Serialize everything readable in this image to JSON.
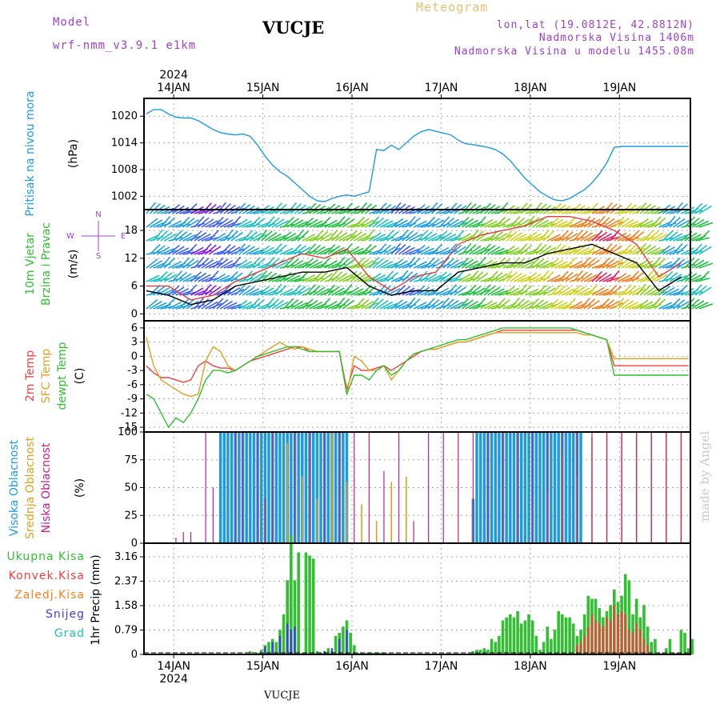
{
  "header": {
    "model_label": "Model",
    "model_name": "wrf-nmm_v3.9.1  e1km",
    "station": "VUCJE",
    "meteogram": "Meteogram",
    "lonlat": "lon,lat (19.0812E, 42.8812N)",
    "altitude": "Nadmorska Visina 1406m",
    "model_altitude": "Nadmorska Visina u modelu 1455.08m",
    "bottom_station": "VUCJE",
    "watermark": "made by Angel"
  },
  "colors": {
    "pressure": "#1e9be0",
    "t2m": "#f04040",
    "sfc": "#e0a020",
    "dew": "#30c030",
    "high_cloud": "#1e9be0",
    "mid_cloud": "#e0a020",
    "low_cloud": "#c0208a",
    "total_precip": "#30c030",
    "conv_precip": "#f04040",
    "frozen": "#ff8020",
    "snow": "#4040e0",
    "hail": "#20c0c0"
  },
  "time_axis": {
    "year": "2024",
    "days": [
      "14JAN",
      "15JAN",
      "16JAN",
      "17JAN",
      "18JAN",
      "19JAN"
    ]
  },
  "chart_data": [
    {
      "type": "line",
      "id": "pressure",
      "ylabel_1": "Pritisak na nivou mora",
      "ylabel_2": "(hPa)",
      "yticks": [
        "1020",
        "1014",
        "1008",
        "1002"
      ],
      "ylim": [
        999,
        1024
      ],
      "x_hours_from_14JAN00": [
        -4,
        -2,
        0,
        2,
        4,
        6,
        8,
        10,
        12,
        14,
        16,
        18,
        20,
        22,
        24,
        26,
        28,
        30,
        32,
        34,
        36,
        38,
        40,
        42,
        44,
        46,
        48,
        50,
        52,
        54,
        56,
        58,
        60,
        62,
        64,
        66,
        68,
        70,
        72,
        74,
        76,
        78,
        80,
        82,
        84,
        86,
        88,
        90,
        92,
        94,
        96,
        98,
        100,
        102,
        104,
        106,
        108,
        110,
        112,
        114,
        116,
        118,
        120,
        122,
        124,
        126,
        128,
        130,
        132,
        134,
        136,
        138,
        140,
        142
      ],
      "series": [
        {
          "values": [
            1020.5,
            1021.5,
            1021.5,
            1020.5,
            1019.8,
            1019.6,
            1019.6,
            1019,
            1018,
            1017,
            1016.3,
            1016,
            1015.8,
            1016,
            1015.5,
            1013.5,
            1011,
            1009,
            1007.5,
            1006.5,
            1005,
            1003.5,
            1002,
            1001,
            1000.8,
            1001.5,
            1002,
            1002.3,
            1002,
            1002.5,
            1003,
            1012.5,
            1012.3,
            1013.5,
            1012.5,
            1014,
            1015.5,
            1016.5,
            1017,
            1016.6,
            1016.2,
            1015.8,
            1014.6,
            1013.8,
            1013.6,
            1013.3,
            1013,
            1012.5,
            1011.5,
            1010,
            1008,
            1006,
            1004.5,
            1003,
            1002,
            1001.2,
            1001,
            1001.5,
            1002.5,
            1003.5,
            1005,
            1007,
            1009.5,
            1013,
            1013.2,
            1013.2,
            1013.2,
            1013.2,
            1013.2,
            1013.2,
            1013.2,
            1013.2,
            1013.2,
            1013.2
          ]
        }
      ]
    },
    {
      "type": "barbs",
      "id": "wind",
      "ylabel_1": "10m Vjetar",
      "ylabel_2": "Brzina i Pravac",
      "ylabel_3": "(m/s)",
      "yticks": [
        "18",
        "12",
        "6",
        "0"
      ],
      "ylim": [
        -1.5,
        22.5
      ],
      "compass": {
        "n": "N",
        "s": "S",
        "w": "W",
        "e": "E"
      },
      "x_hours_from_14JAN00": [
        -4,
        2,
        8,
        14,
        20,
        26,
        32,
        38,
        44,
        50,
        56,
        62,
        68,
        74,
        80,
        86,
        92,
        98,
        104,
        110,
        116,
        122,
        128,
        134,
        140
      ],
      "speed": [
        5,
        4,
        2,
        3,
        6,
        7,
        8,
        9,
        9,
        10,
        6,
        4,
        5,
        5,
        9,
        10,
        11,
        11,
        13,
        14,
        15,
        13,
        11,
        5,
        8
      ],
      "gust": [
        6,
        6,
        3,
        4,
        7,
        9,
        11,
        13,
        12,
        14,
        8,
        5,
        8,
        9,
        15,
        17,
        18,
        19,
        21,
        21,
        20,
        18,
        15,
        8,
        11
      ]
    },
    {
      "type": "line",
      "id": "temperature",
      "ylabel_1": "2m Temp",
      "ylabel_2": "SFC Temp",
      "ylabel_3": "dewpt Temp",
      "ylabel_4": "(C)",
      "yticks": [
        "6",
        "3",
        "0",
        "-3",
        "-6",
        "-9",
        "-12",
        "-15"
      ],
      "ylim": [
        -16,
        7.5
      ],
      "x_hours_from_14JAN00": [
        -4,
        -2,
        0,
        2,
        4,
        6,
        8,
        10,
        12,
        14,
        16,
        18,
        20,
        22,
        24,
        26,
        28,
        30,
        32,
        34,
        36,
        38,
        40,
        42,
        44,
        46,
        48,
        50,
        52,
        54,
        56,
        58,
        60,
        62,
        64,
        66,
        68,
        70,
        72,
        74,
        76,
        78,
        80,
        82,
        84,
        86,
        88,
        90,
        92,
        94,
        96,
        98,
        100,
        102,
        104,
        106,
        108,
        110,
        112,
        114,
        116,
        118,
        120,
        122,
        124,
        126,
        128,
        130,
        132,
        134,
        136,
        138,
        140,
        142
      ],
      "series": [
        {
          "name": "2m Temp",
          "values": [
            -2,
            -3.5,
            -4.5,
            -4.5,
            -5,
            -5.5,
            -5,
            -2,
            -1,
            -2,
            -2.5,
            -2.5,
            -3,
            -2,
            -1,
            -0.5,
            0,
            0.5,
            1,
            1.5,
            2,
            2,
            1,
            1,
            1,
            1,
            1,
            -7,
            -2,
            -3,
            -3,
            -2.5,
            -2,
            -3,
            -2,
            -1,
            0,
            1,
            1.5,
            1.5,
            2,
            2.5,
            3,
            3,
            3.5,
            4,
            4.5,
            5,
            5.5,
            5.5,
            5.5,
            5.5,
            5.5,
            5.5,
            5.5,
            5.5,
            5.5,
            5.5,
            5.5,
            5,
            4.5,
            4,
            3.5,
            -2,
            -2,
            -2,
            -2,
            -2,
            -2,
            -2,
            -2,
            -2,
            -2,
            -2
          ]
        },
        {
          "name": "SFC Temp",
          "values": [
            4,
            -2,
            -5,
            -6,
            -7,
            -8,
            -8.5,
            -8,
            -1,
            2,
            1,
            -2,
            -3,
            -2,
            -1,
            0,
            1,
            2,
            3,
            2,
            1.5,
            2,
            1.5,
            1,
            1,
            1,
            1,
            -8,
            0,
            -1,
            -3,
            -3,
            -2,
            -5,
            -3,
            -1,
            0.5,
            1,
            1.5,
            1.5,
            2,
            2.5,
            3,
            3,
            3.5,
            4,
            4.5,
            5,
            5,
            5,
            5,
            5,
            5,
            5,
            5,
            5,
            5,
            5,
            5,
            4.5,
            4.5,
            4,
            3.5,
            -0.5,
            -0.5,
            -0.5,
            -0.5,
            -0.5,
            -0.5,
            -0.5,
            -0.5,
            -0.5,
            -0.5,
            -0.5
          ]
        },
        {
          "name": "dewpt Temp",
          "values": [
            -8,
            -9,
            -12,
            -15,
            -13,
            -14,
            -12,
            -9,
            -5,
            -3,
            -3,
            -3.5,
            -3,
            -2,
            -1,
            0,
            0.5,
            1,
            1.5,
            2,
            2,
            1.5,
            1,
            1,
            1,
            1,
            1,
            -8,
            -4,
            -4,
            -5,
            -3,
            -2,
            -4,
            -3,
            -1,
            0.5,
            1,
            1.5,
            2,
            2.5,
            3,
            3.5,
            3.5,
            4,
            4.5,
            5,
            5.5,
            6,
            6,
            6,
            6,
            6,
            6,
            6,
            6,
            6,
            6,
            5.5,
            5,
            4.5,
            4,
            3.5,
            -4,
            -4,
            -4,
            -4,
            -4,
            -4,
            -4,
            -4,
            -4,
            -4,
            -4
          ]
        }
      ]
    },
    {
      "type": "bar",
      "id": "clouds",
      "ylabel_1": "Visoka Oblacnost",
      "ylabel_2": "Srednja Oblacnost",
      "ylabel_3": "Niska Oblacnost",
      "ylabel_4": "(%)",
      "yticks": [
        "100",
        "75",
        "50",
        "25",
        "0"
      ],
      "ylim": [
        0,
        100
      ],
      "series": [
        {
          "name": "Visoka Oblacnost",
          "x": [
            16,
            17,
            18,
            19,
            20,
            21,
            22,
            23,
            24,
            25,
            26,
            27,
            28,
            29,
            30,
            31,
            32,
            33,
            34,
            35,
            36,
            37,
            38,
            39,
            40,
            41,
            42,
            43,
            44,
            45,
            46,
            47,
            48,
            49,
            50,
            84,
            85,
            86,
            87,
            88,
            89,
            90,
            91,
            92,
            93,
            94,
            95,
            96,
            97,
            98,
            99,
            100,
            101,
            102,
            103,
            104,
            105,
            106,
            107,
            108,
            109,
            110,
            111,
            112,
            113
          ],
          "values": [
            100,
            100,
            100,
            100,
            100,
            100,
            100,
            100,
            100,
            100,
            100,
            100,
            100,
            100,
            100,
            100,
            100,
            100,
            100,
            100,
            100,
            100,
            100,
            100,
            100,
            100,
            100,
            100,
            100,
            100,
            100,
            100,
            100,
            100,
            100,
            40,
            100,
            100,
            100,
            100,
            100,
            100,
            100,
            100,
            100,
            100,
            100,
            100,
            100,
            100,
            100,
            100,
            100,
            100,
            100,
            100,
            100,
            100,
            100,
            100,
            100,
            100,
            100,
            100,
            100
          ]
        },
        {
          "name": "Srednja Oblacnost",
          "x": [
            34,
            38,
            42,
            46,
            50,
            54,
            58,
            62,
            66,
            100,
            104,
            108,
            112,
            116,
            120,
            124,
            128,
            132,
            136,
            140
          ],
          "values": [
            90,
            60,
            40,
            100,
            55,
            35,
            20,
            55,
            60,
            35,
            45,
            80,
            60,
            95,
            100,
            100,
            100,
            100,
            100,
            100
          ]
        },
        {
          "name": "Niska Oblacnost",
          "x": [
            4,
            6,
            8,
            12,
            14,
            20,
            22,
            26,
            28,
            30,
            36,
            40,
            44,
            48,
            52,
            56,
            60,
            64,
            68,
            72,
            76,
            80,
            84,
            88,
            92,
            96,
            100,
            104,
            108,
            112,
            116,
            120,
            124,
            128,
            132,
            136,
            140
          ],
          "values": [
            5,
            10,
            10,
            100,
            50,
            100,
            100,
            100,
            40,
            100,
            100,
            100,
            100,
            100,
            100,
            100,
            65,
            100,
            20,
            100,
            100,
            100,
            100,
            100,
            100,
            100,
            100,
            100,
            100,
            100,
            100,
            100,
            100,
            100,
            100,
            100,
            100
          ]
        }
      ]
    },
    {
      "type": "bar",
      "id": "precip",
      "labels": [
        "Ukupna Kisa",
        "Konvek.Kisa",
        "Zaledj.Kisa",
        "Snijeg",
        "Grad"
      ],
      "ylabel": "1hr Precip (mm)",
      "yticks": [
        "3.16",
        "2.37",
        "1.58",
        "0.79",
        "0"
      ],
      "ylim": [
        0,
        3.6
      ],
      "series": [
        {
          "name": "Ukupna Kisa",
          "x": [
            24,
            26,
            27,
            28,
            29,
            30,
            31,
            32,
            33,
            34,
            35,
            36,
            37,
            38,
            39,
            40,
            41,
            42,
            43,
            44,
            45,
            46,
            47,
            48,
            49,
            50,
            51,
            52,
            53,
            54,
            55,
            56,
            57,
            58,
            59,
            60,
            84,
            85,
            86,
            87,
            88,
            89,
            90,
            91,
            92,
            93,
            94,
            95,
            96,
            97,
            98,
            99,
            100,
            101,
            102,
            103,
            104,
            105,
            106,
            107,
            108,
            109,
            110,
            111,
            112,
            113,
            114,
            115,
            116,
            117,
            118,
            119,
            120,
            121,
            122,
            123,
            124,
            125,
            126,
            127,
            128,
            129,
            130,
            131,
            132,
            133,
            134,
            135,
            136,
            137,
            138,
            139,
            140,
            141,
            142,
            143
          ],
          "values": [
            0.1,
            0.05,
            0.15,
            0.3,
            0.4,
            0.5,
            0.4,
            0.8,
            1.3,
            2.4,
            3.85,
            2.4,
            3.3,
            0.05,
            3.3,
            3.2,
            3.1,
            0.1,
            0.05,
            0.1,
            0.2,
            0.1,
            0.6,
            0.7,
            0.9,
            1.1,
            0.7,
            0.3,
            0.05,
            0.05,
            0.05,
            0.05,
            0.05,
            0.05,
            0.05,
            0.05,
            0.1,
            0.15,
            0.15,
            0.2,
            0.15,
            0.5,
            0.4,
            0.6,
            1.1,
            1.2,
            1.3,
            1.2,
            1.4,
            1.0,
            1.1,
            1.3,
            1.1,
            0.6,
            0.15,
            0.4,
            0.9,
            0.5,
            0.8,
            1.4,
            1.3,
            1.2,
            1.2,
            1.0,
            0.6,
            0.8,
            1.3,
            1.9,
            1.8,
            1.8,
            1.5,
            1.2,
            1.4,
            1.6,
            2.1,
            1.7,
            1.9,
            2.6,
            2.4,
            1.3,
            1.8,
            1.2,
            1.6,
            0.9,
            0.4,
            0.5,
            0.05,
            0.05,
            0.2,
            0.5,
            0.05,
            0.05,
            0.8,
            0.7,
            0.2,
            0.5
          ]
        },
        {
          "name": "Konvek.Kisa",
          "x": [
            112,
            113,
            114,
            115,
            116,
            117,
            118,
            119,
            120,
            121,
            122,
            123,
            124,
            125,
            126,
            127,
            128,
            129,
            130,
            131
          ],
          "values": [
            0.3,
            0.4,
            0.6,
            0.9,
            1.3,
            1.1,
            1.0,
            0.9,
            1.2,
            1.1,
            1.6,
            1.3,
            1.4,
            1.3,
            0.8,
            0.7,
            1.0,
            0.8,
            0.5,
            0.3
          ]
        },
        {
          "name": "Snijeg",
          "x": [
            28,
            30,
            32,
            34,
            35,
            36,
            44,
            46,
            48,
            50
          ],
          "values": [
            0.25,
            0.4,
            0.6,
            1.0,
            0.8,
            0.9,
            0.1,
            0.2,
            0.5,
            0.8
          ]
        },
        {
          "name": "Grad",
          "x": [],
          "values": []
        }
      ]
    }
  ]
}
